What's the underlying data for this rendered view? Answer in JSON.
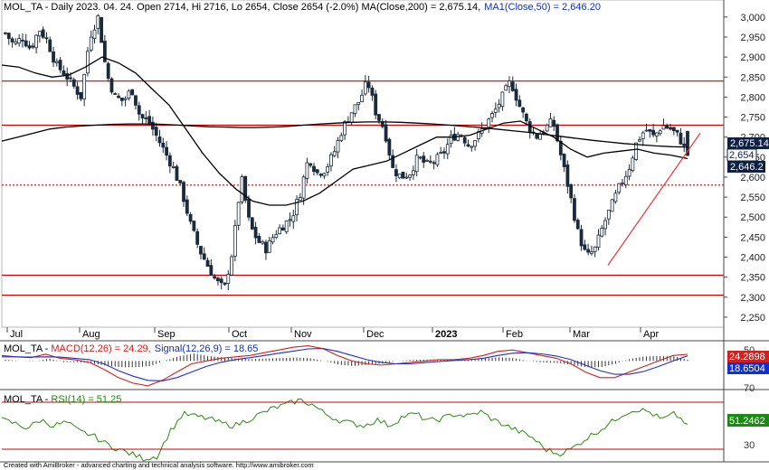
{
  "colors": {
    "candle": "#1a2a3a",
    "ma200": "#000000",
    "ma50": "#000000",
    "hline": "#cc0000",
    "trend": "#ee3333",
    "macd": "#d02020",
    "signal": "#2030c0",
    "hist": "#333333",
    "rsi": "#2a8a10",
    "axis_box_dark": "#102040",
    "macd_box": "#d02020",
    "signal_box": "#1030d0",
    "rsi_box": "#1a8a10"
  },
  "price_panel": {
    "header": {
      "symbol": "MOL_TA",
      "desc": " - Daily 2023. 04. 24. Open 2714, Hi 2716, Lo 2654, Close 2654 (-2.0%) ",
      "ma200_label": "MA(Close,200) = 2,675.14,",
      "ma50_label": "MA1(Close,50) = 2,646.20"
    },
    "y_ticks": [
      "3,000",
      "2,950",
      "2,900",
      "2,850",
      "2,800",
      "2,750",
      "2,700",
      "2,650",
      "2,600",
      "2,550",
      "2,500",
      "2,450",
      "2,400",
      "2,350",
      "2,300",
      "2,250"
    ],
    "y_values": [
      3000,
      2950,
      2900,
      2850,
      2800,
      2750,
      2700,
      2650,
      2600,
      2550,
      2500,
      2450,
      2400,
      2350,
      2300,
      2250
    ],
    "tags": {
      "ma200": "2,675.14",
      "close": "2,654",
      "ma50": "2,646.2"
    }
  },
  "x_axis": {
    "labels": [
      "Jul",
      "Aug",
      "Sep",
      "Oct",
      "Nov",
      "Dec",
      "2023",
      "Feb",
      "Mar",
      "Apr"
    ],
    "bold_index": 6
  },
  "macd_panel": {
    "header": {
      "symbol": "MOL_TA",
      "macd": "MACD(12,26) = 24.29,",
      "signal": "Signal(12,26,9) = 18.65"
    },
    "tick": "50",
    "tags": {
      "macd": "24.2898",
      "signal": "18.6504"
    }
  },
  "rsi_panel": {
    "header": {
      "symbol": "MOL_TA",
      "rsi": "RSI(14) = 51.25"
    },
    "ticks": [
      "70",
      "30"
    ],
    "tag": "51.2462"
  },
  "footer": "Created with AmiBroker - advanced charting and technical analysis software. http://www.amibroker.com",
  "chart_data": [
    {
      "type": "candlestick",
      "symbol": "MOL_TA",
      "ylim": [
        2225,
        3020
      ],
      "horizontal_lines": [
        2840,
        2730,
        2580,
        2355,
        2305
      ],
      "trendline": {
        "from": [
          "Mar",
          2380
        ],
        "to": [
          "Apr",
          2710
        ]
      },
      "last_bar": {
        "open": 2714,
        "high": 2716,
        "low": 2654,
        "close": 2654,
        "change_pct": -2.0
      },
      "ma200_last": 2675.14,
      "ma50_last": 2646.2,
      "close_path": [
        2960,
        2930,
        2950,
        2920,
        2970,
        2940,
        2880,
        2860,
        2830,
        2800,
        2950,
        3000,
        2860,
        2800,
        2790,
        2820,
        2750,
        2740,
        2700,
        2660,
        2620,
        2560,
        2480,
        2420,
        2380,
        2340,
        2320,
        2420,
        2600,
        2480,
        2440,
        2420,
        2460,
        2480,
        2500,
        2560,
        2650,
        2610,
        2620,
        2660,
        2720,
        2760,
        2790,
        2840,
        2760,
        2720,
        2620,
        2600,
        2610,
        2650,
        2630,
        2640,
        2660,
        2700,
        2710,
        2680,
        2700,
        2730,
        2760,
        2800,
        2840,
        2780,
        2730,
        2700,
        2720,
        2740,
        2650,
        2560,
        2460,
        2400,
        2420,
        2480,
        2530,
        2580,
        2620,
        2690,
        2720,
        2700,
        2730,
        2720,
        2700,
        2654
      ],
      "ma200_path": [
        2690,
        2700,
        2710,
        2720,
        2725,
        2728,
        2730,
        2732,
        2733,
        2733,
        2732,
        2730,
        2728,
        2726,
        2725,
        2724,
        2724,
        2725,
        2727,
        2730,
        2733,
        2735,
        2737,
        2738,
        2738,
        2737,
        2735,
        2733,
        2730,
        2727,
        2724,
        2720,
        2716,
        2712,
        2707,
        2702,
        2697,
        2692,
        2688,
        2684,
        2681,
        2678,
        2676,
        2675.14
      ],
      "ma50_path": [
        2880,
        2875,
        2860,
        2850,
        2855,
        2875,
        2900,
        2885,
        2860,
        2820,
        2780,
        2720,
        2660,
        2610,
        2570,
        2540,
        2530,
        2530,
        2540,
        2560,
        2590,
        2620,
        2630,
        2640,
        2660,
        2680,
        2700,
        2700,
        2705,
        2720,
        2735,
        2740,
        2720,
        2700,
        2670,
        2650,
        2660,
        2665,
        2670,
        2660,
        2655,
        2646.2
      ]
    },
    {
      "type": "line",
      "name": "MACD(12,26)",
      "series": [
        {
          "name": "MACD",
          "last": 24.29,
          "values": [
            20,
            15,
            12,
            25,
            10,
            5,
            -5,
            -30,
            -60,
            -80,
            -90,
            -70,
            -40,
            -10,
            0,
            10,
            15,
            20,
            30,
            40,
            50,
            55,
            45,
            20,
            0,
            -10,
            -15,
            -10,
            -5,
            0,
            5,
            5,
            10,
            20,
            35,
            40,
            30,
            20,
            10,
            -10,
            -40,
            -60,
            -60,
            -40,
            -20,
            0,
            20,
            24.29
          ]
        },
        {
          "name": "Signal",
          "last": 18.65,
          "values": [
            15,
            15,
            14,
            15,
            14,
            10,
            5,
            -10,
            -35,
            -55,
            -70,
            -72,
            -60,
            -40,
            -20,
            -5,
            5,
            12,
            20,
            28,
            36,
            44,
            45,
            35,
            20,
            5,
            -5,
            -10,
            -10,
            -6,
            -2,
            2,
            5,
            10,
            20,
            28,
            30,
            26,
            18,
            5,
            -15,
            -35,
            -48,
            -48,
            -38,
            -20,
            0,
            18.65
          ]
        }
      ]
    },
    {
      "type": "line",
      "name": "RSI(14)",
      "ylim": [
        20,
        80
      ],
      "levels": [
        70,
        30
      ],
      "series": [
        {
          "name": "RSI",
          "last": 51.25,
          "values": [
            55,
            52,
            48,
            55,
            50,
            53,
            45,
            42,
            35,
            30,
            26,
            22,
            24,
            45,
            60,
            58,
            56,
            52,
            50,
            55,
            60,
            65,
            68,
            72,
            68,
            60,
            55,
            52,
            50,
            55,
            50,
            58,
            60,
            54,
            56,
            60,
            58,
            62,
            55,
            50,
            45,
            40,
            30,
            26,
            30,
            38,
            45,
            52,
            60,
            64,
            62,
            55,
            60,
            51.25
          ]
        }
      ]
    }
  ]
}
